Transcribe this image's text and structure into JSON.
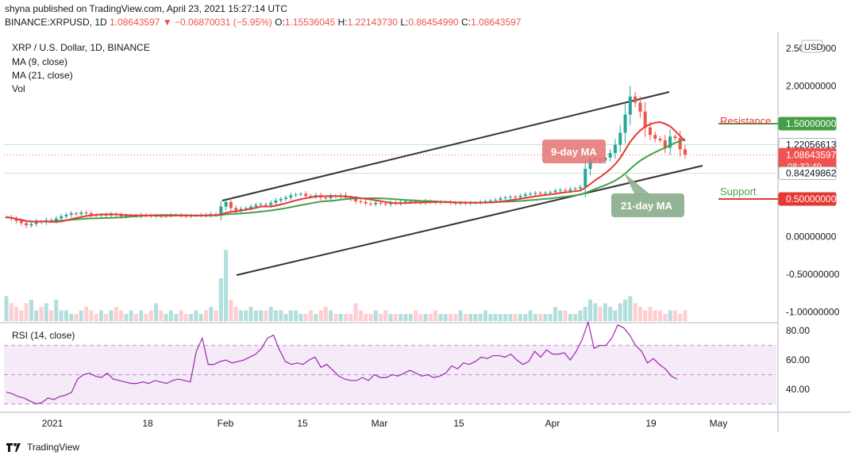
{
  "header": {
    "published": "shyna published on TradingView.com, April 23, 2021 15:27:14 UTC",
    "symbol": "BINANCE:XRPUSD, 1D",
    "last": "1.08643597",
    "change": "−0.06870031 (−5.95%)",
    "o_label": "O:",
    "o": "1.15536045",
    "h_label": "H:",
    "h": "1.22143730",
    "l_label": "L:",
    "l": "0.86454990",
    "c_label": "C:",
    "c": "1.08643597"
  },
  "legend": {
    "title": "XRP / U.S. Dollar, 1D, BINANCE",
    "ma9": "MA (9, close)",
    "ma21": "MA (21, close)",
    "vol": "Vol",
    "rsi": "RSI (14, close)"
  },
  "currency": "USD",
  "footer": {
    "brand": "TradingView"
  },
  "colors": {
    "up": "#26a69a",
    "down": "#ef5350",
    "ma9": "#e53935",
    "ma21": "#43a047",
    "rsi": "#9c27b0",
    "resistance": "#e53935",
    "support": "#43a047"
  },
  "annotations": {
    "ma9": "9-day MA",
    "ma21": "21-day MA",
    "resistance": "Resistance",
    "support": "Support"
  },
  "chart_data": [
    {
      "type": "candlestick",
      "title": "XRP / U.S. Dollar, 1D, BINANCE",
      "x_ticks": [
        "2021",
        "18",
        "Feb",
        "15",
        "Mar",
        "15",
        "Apr",
        "19",
        "May"
      ],
      "y_ticks": [
        "2.50000000",
        "2.00000000",
        "1.50000000",
        "1.00000000",
        "0.50000000",
        "0.00000000",
        "-0.50000000",
        "-1.00000000"
      ],
      "ylim": [
        -1.12,
        2.72
      ],
      "price_labels": [
        {
          "label": "1.50000000",
          "value": 1.5,
          "color": "#43a047"
        },
        {
          "label": "1.22056613",
          "value": 1.22056613,
          "color": "#ffffff"
        },
        {
          "label": "1.08643597",
          "value": 1.08643597,
          "color": "#ef5350",
          "sub": "08:32:49"
        },
        {
          "label": "0.84249862",
          "value": 0.84249862,
          "color": "#ffffff"
        },
        {
          "label": "0.50000000",
          "value": 0.5,
          "color": "#e53935"
        }
      ],
      "close_series": [
        0.26,
        0.24,
        0.21,
        0.18,
        0.15,
        0.17,
        0.2,
        0.19,
        0.22,
        0.21,
        0.24,
        0.27,
        0.29,
        0.31,
        0.3,
        0.32,
        0.31,
        0.29,
        0.28,
        0.29,
        0.28,
        0.3,
        0.29,
        0.27,
        0.28,
        0.28,
        0.27,
        0.29,
        0.28,
        0.27,
        0.28,
        0.27,
        0.28,
        0.29,
        0.29,
        0.28,
        0.27,
        0.28,
        0.28,
        0.29,
        0.28,
        0.3,
        0.29,
        0.4,
        0.46,
        0.38,
        0.35,
        0.37,
        0.38,
        0.4,
        0.42,
        0.43,
        0.42,
        0.45,
        0.48,
        0.5,
        0.52,
        0.55,
        0.56,
        0.57,
        0.54,
        0.53,
        0.55,
        0.52,
        0.51,
        0.54,
        0.53,
        0.55,
        0.52,
        0.5,
        0.47,
        0.46,
        0.44,
        0.43,
        0.45,
        0.44,
        0.43,
        0.45,
        0.44,
        0.46,
        0.47,
        0.47,
        0.46,
        0.45,
        0.47,
        0.46,
        0.45,
        0.46,
        0.46,
        0.45,
        0.44,
        0.45,
        0.44,
        0.45,
        0.45,
        0.46,
        0.47,
        0.48,
        0.49,
        0.51,
        0.52,
        0.53,
        0.52,
        0.54,
        0.56,
        0.57,
        0.58,
        0.57,
        0.58,
        0.59,
        0.61,
        0.62,
        0.61,
        0.63,
        0.64,
        0.66,
        0.9,
        1.03,
        1.04,
        1.01,
        1.05,
        1.11,
        1.22,
        1.38,
        1.62,
        1.86,
        1.78,
        1.66,
        1.45,
        1.35,
        1.3,
        1.28,
        1.18,
        1.33,
        1.31,
        1.16,
        1.09
      ]
    },
    {
      "type": "line",
      "title": "RSI (14, close)",
      "y_ticks": [
        "80.00",
        "60.00",
        "40.00"
      ],
      "ylim": [
        27,
        85
      ],
      "bands": [
        30,
        50,
        70
      ],
      "values": [
        38,
        37,
        35,
        34,
        32,
        30,
        31,
        34,
        33,
        35,
        36,
        38,
        47,
        50,
        51,
        49,
        48,
        51,
        47,
        46,
        45,
        44,
        44,
        45,
        44,
        46,
        45,
        44,
        46,
        47,
        46,
        45,
        66,
        75,
        57,
        57,
        59,
        60,
        58,
        59,
        60,
        62,
        64,
        68,
        75,
        77,
        67,
        59,
        57,
        58,
        57,
        60,
        62,
        55,
        57,
        53,
        49,
        47,
        46,
        46,
        48,
        46,
        50,
        48,
        48,
        50,
        49,
        51,
        53,
        51,
        49,
        50,
        48,
        49,
        51,
        56,
        54,
        58,
        57,
        59,
        62,
        61,
        63,
        63,
        62,
        64,
        60,
        57,
        59,
        66,
        62,
        67,
        64,
        64,
        65,
        60,
        66,
        74,
        86,
        68,
        70,
        70,
        75,
        84,
        82,
        77,
        70,
        66,
        58,
        61,
        57,
        54,
        49,
        47
      ]
    },
    {
      "type": "bar",
      "title": "Vol",
      "values": [
        0.7,
        0.5,
        0.4,
        0.3,
        0.5,
        0.6,
        0.3,
        0.4,
        0.5,
        0.3,
        0.6,
        0.3,
        0.3,
        0.2,
        0.2,
        0.3,
        0.4,
        0.3,
        0.2,
        0.3,
        0.2,
        0.3,
        0.4,
        0.3,
        0.2,
        0.3,
        0.2,
        0.3,
        0.2,
        0.3,
        0.5,
        0.3,
        0.2,
        0.3,
        0.2,
        0.3,
        0.2,
        0.2,
        0.3,
        0.2,
        0.3,
        0.4,
        0.3,
        1.2,
        2.0,
        0.6,
        0.4,
        0.3,
        0.3,
        0.4,
        0.3,
        0.3,
        0.3,
        0.4,
        0.3,
        0.3,
        0.2,
        0.3,
        0.3,
        0.2,
        0.2,
        0.3,
        0.2,
        0.3,
        0.4,
        0.3,
        0.2,
        0.2,
        0.2,
        0.2,
        0.5,
        0.3,
        0.2,
        0.2,
        0.3,
        0.2,
        0.3,
        0.2,
        0.2,
        0.2,
        0.2,
        0.2,
        0.3,
        0.2,
        0.2,
        0.2,
        0.3,
        0.2,
        0.2,
        0.2,
        0.2,
        0.3,
        0.2,
        0.2,
        0.2,
        0.2,
        0.3,
        0.2,
        0.2,
        0.2,
        0.2,
        0.2,
        0.2,
        0.2,
        0.2,
        0.3,
        0.2,
        0.2,
        0.2,
        0.2,
        0.4,
        0.3,
        0.3,
        0.2,
        0.2,
        0.3,
        0.4,
        0.6,
        0.5,
        0.4,
        0.5,
        0.4,
        0.3,
        0.5,
        0.6,
        0.7,
        0.5,
        0.4,
        0.3,
        0.4,
        0.3,
        0.3,
        0.2,
        0.3,
        0.3,
        0.2,
        0.3
      ]
    }
  ]
}
